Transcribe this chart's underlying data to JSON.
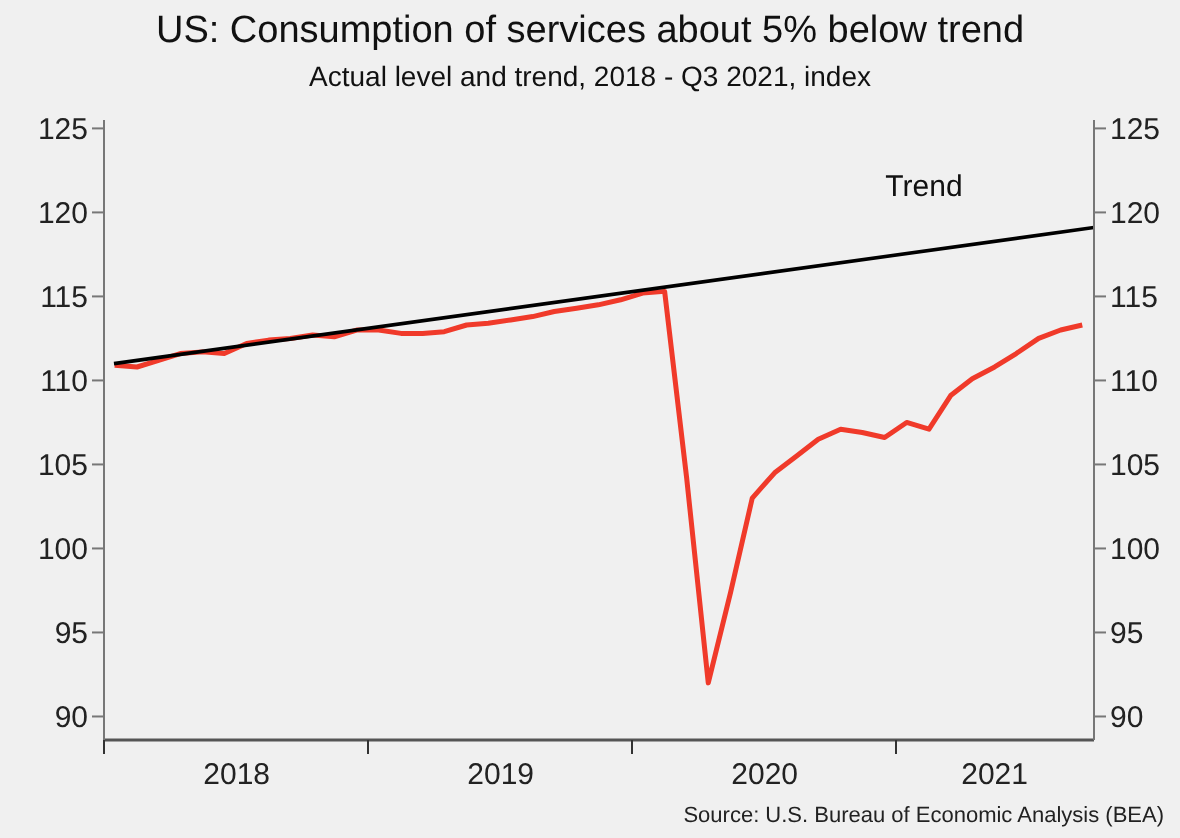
{
  "chart_data": {
    "type": "line",
    "title": "US: Consumption of services about 5% below trend",
    "subtitle": "Actual level and trend, 2018 - Q3 2021, index",
    "series": [
      {
        "type": "line",
        "color": "#f03a2a",
        "x": [
          "2018-01-16",
          "2018-02-15",
          "2018-03-16",
          "2018-04-15",
          "2018-05-16",
          "2018-06-15",
          "2018-07-16",
          "2018-08-16",
          "2018-09-15",
          "2018-10-16",
          "2018-11-15",
          "2018-12-16",
          "2019-01-16",
          "2019-02-15",
          "2019-03-16",
          "2019-04-15",
          "2019-05-16",
          "2019-06-15",
          "2019-07-16",
          "2019-08-16",
          "2019-09-15",
          "2019-10-16",
          "2019-11-15",
          "2019-12-16",
          "2020-01-16",
          "2020-02-15",
          "2020-03-16",
          "2020-04-15",
          "2020-05-16",
          "2020-06-15",
          "2020-07-16",
          "2020-08-16",
          "2020-09-15",
          "2020-10-16",
          "2020-11-15",
          "2020-12-16",
          "2021-01-16",
          "2021-02-15",
          "2021-03-16",
          "2021-04-15",
          "2021-05-16",
          "2021-06-15",
          "2021-07-16",
          "2021-08-16",
          "2021-09-15"
        ],
        "values": [
          110.9,
          110.8,
          111.2,
          111.6,
          111.7,
          111.6,
          112.2,
          112.4,
          112.5,
          112.7,
          112.6,
          113.0,
          113.0,
          112.8,
          112.8,
          112.9,
          113.3,
          113.4,
          113.6,
          113.8,
          114.1,
          114.3,
          114.5,
          114.8,
          115.2,
          115.3,
          104.2,
          92.0,
          97.4,
          103.0,
          104.5,
          105.5,
          106.5,
          107.1,
          106.9,
          106.6,
          107.5,
          107.1,
          109.1,
          110.1,
          110.8,
          111.6,
          112.5,
          113.0,
          113.3
        ]
      },
      {
        "type": "line",
        "name": "Trend",
        "color": "#000000",
        "x": [
          "2018-01-15",
          "2021-10-01"
        ],
        "values": [
          111.0,
          119.1
        ]
      }
    ],
    "xlim": [
      "2018-01-01",
      "2021-10-01"
    ],
    "xticks": [
      {
        "value": "2018-01-01",
        "label": null
      },
      {
        "value": "2018-07-02",
        "label": "2018"
      },
      {
        "value": "2019-01-01",
        "label": null
      },
      {
        "value": "2019-07-02",
        "label": "2019"
      },
      {
        "value": "2020-01-01",
        "label": null
      },
      {
        "value": "2020-07-02",
        "label": "2020"
      },
      {
        "value": "2021-01-01",
        "label": null
      },
      {
        "value": "2021-05-16",
        "label": "2021"
      }
    ],
    "ylim": [
      88.6,
      125.5
    ],
    "yticks": [
      90,
      95,
      100,
      105,
      110,
      115,
      120,
      125
    ],
    "y2lim": [
      88.6,
      125.5
    ],
    "y2ticks": [
      90,
      95,
      100,
      105,
      110,
      115,
      120,
      125
    ],
    "annotations": [
      "Source: U.S. Bureau of Economic Analysis (BEA)"
    ],
    "grid": false,
    "legend": false
  }
}
